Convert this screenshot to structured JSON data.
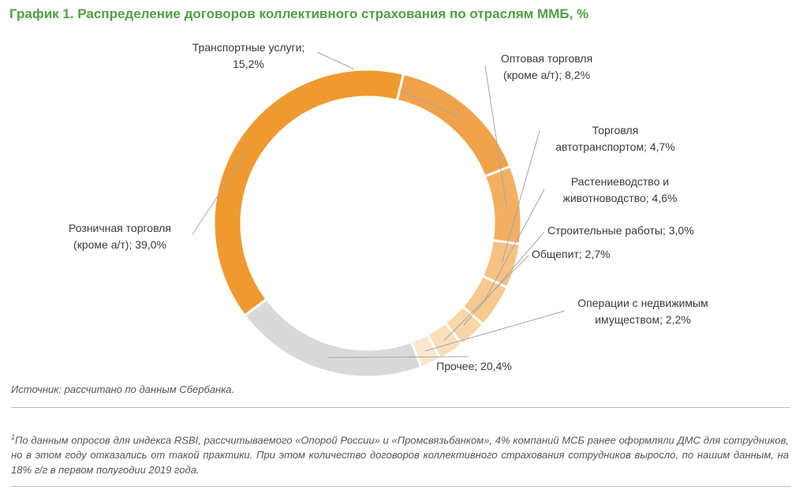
{
  "title": "График 1. Распределение договоров коллективного страхования по отраслям ММБ, %",
  "source": "Источник: рассчитано по данным Сбербанка.",
  "footnote": {
    "marker": "1",
    "text": "По данным опросов для индекса RSBI, рассчитываемого «Опорой России» и «Промсвязьбанком», 4% компаний МСБ ранее оформляли ДМС для сотрудников, но в этом году отказались от такой практики. При этом количество договоров коллективного страхования сотрудников выросло, по нашим данным, на 18% г/г в первом полугодии 2019 года."
  },
  "chart_data": {
    "type": "pie",
    "style": "donut",
    "title": "График 1. Распределение договоров коллективного страхования по отраслям ММБ, %",
    "unit": "%",
    "slices": [
      {
        "label_lines": [
          "Транспортные услуги;",
          "15,2%"
        ],
        "value": 15.2,
        "color": "#f0a24a"
      },
      {
        "label_lines": [
          "Оптовая торговля",
          "(кроме а/т); 8,2%"
        ],
        "value": 8.2,
        "color": "#f3b062"
      },
      {
        "label_lines": [
          "Торговля",
          "автотранспортом; 4,7%"
        ],
        "value": 4.7,
        "color": "#f6c282"
      },
      {
        "label_lines": [
          "Растениеводство и",
          "животноводство; 4,6%"
        ],
        "value": 4.6,
        "color": "#f7c98f"
      },
      {
        "label_lines": [
          "Строительные работы; 3,0%"
        ],
        "value": 3.0,
        "color": "#f9d6a8"
      },
      {
        "label_lines": [
          "Общепит; 2,7%"
        ],
        "value": 2.7,
        "color": "#fbdfbb"
      },
      {
        "label_lines": [
          "Операции с недвижимым",
          "имуществом; 2,2%"
        ],
        "value": 2.2,
        "color": "#fde8ce"
      },
      {
        "label_lines": [
          "Прочее; 20,4%"
        ],
        "value": 20.4,
        "color": "#d9d9d9"
      },
      {
        "label_lines": [
          "Розничная торговля",
          "(кроме а/т); 39,0%"
        ],
        "value": 39.0,
        "color": "#ef9a30"
      }
    ]
  }
}
